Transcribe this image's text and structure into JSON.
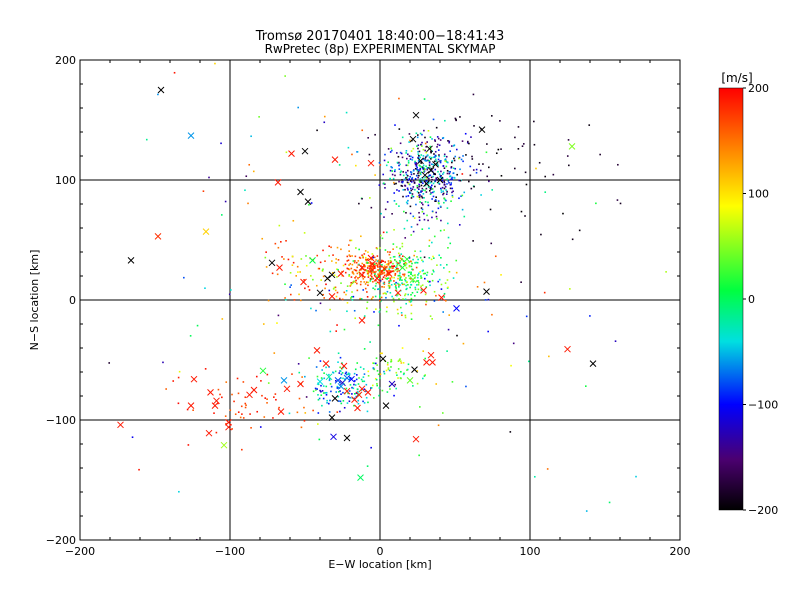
{
  "chart_data": {
    "type": "scatter",
    "title": "Tromsø 20170401 18:40:00−18:41:43",
    "subtitle": "RwPretec (8p) EXPERIMENTAL SKYMAP",
    "xlabel": "E−W location [km]",
    "ylabel": "N−S location [km]",
    "xlim": [
      -200,
      200
    ],
    "ylim": [
      -200,
      200
    ],
    "x_ticks": [
      -200,
      -100,
      0,
      100,
      200
    ],
    "y_ticks": [
      -200,
      -100,
      0,
      100,
      200
    ],
    "grid": true,
    "colorbar": {
      "label": "[m/s]",
      "range": [
        -200,
        200
      ],
      "ticks": [
        200,
        100,
        0,
        -100,
        -200
      ],
      "colormap": [
        "#000000",
        "#6a00a8",
        "#0000ff",
        "#00e0e0",
        "#00ff40",
        "#ffff00",
        "#ff8000",
        "#ff0000"
      ]
    },
    "markers": {
      "cross": "single-velocity estimate (x)",
      "dot": "meteor detection (.)"
    },
    "crosses": [
      {
        "x": -146,
        "y": 175,
        "v": -200
      },
      {
        "x": -126,
        "y": 137,
        "v": -60
      },
      {
        "x": -148,
        "y": 53,
        "v": 180
      },
      {
        "x": -116,
        "y": 57,
        "v": 110
      },
      {
        "x": -166,
        "y": 33,
        "v": -200
      },
      {
        "x": -173,
        "y": -104,
        "v": 190
      },
      {
        "x": -124,
        "y": -66,
        "v": 190
      },
      {
        "x": -126,
        "y": -88,
        "v": 190
      },
      {
        "x": -113,
        "y": -77,
        "v": 190
      },
      {
        "x": -109,
        "y": -84,
        "v": 190
      },
      {
        "x": -110,
        "y": -88,
        "v": 190
      },
      {
        "x": -114,
        "y": -111,
        "v": 190
      },
      {
        "x": -101,
        "y": -102,
        "v": 190
      },
      {
        "x": -101,
        "y": -106,
        "v": 190
      },
      {
        "x": -104,
        "y": -121,
        "v": 60
      },
      {
        "x": -87,
        "y": -79,
        "v": 190
      },
      {
        "x": -78,
        "y": -59,
        "v": 20
      },
      {
        "x": -64,
        "y": -67,
        "v": -60
      },
      {
        "x": -84,
        "y": -75,
        "v": 190
      },
      {
        "x": -53,
        "y": -70,
        "v": 190
      },
      {
        "x": -66,
        "y": -93,
        "v": 190
      },
      {
        "x": -62,
        "y": -74,
        "v": 190
      },
      {
        "x": -59,
        "y": 122,
        "v": 190
      },
      {
        "x": -68,
        "y": 98,
        "v": 190
      },
      {
        "x": -50,
        "y": 124,
        "v": -200
      },
      {
        "x": -53,
        "y": 90,
        "v": -200
      },
      {
        "x": -48,
        "y": 82,
        "v": -200
      },
      {
        "x": -30,
        "y": 117,
        "v": 190
      },
      {
        "x": -6,
        "y": 114,
        "v": 190
      },
      {
        "x": 22,
        "y": 134,
        "v": -200
      },
      {
        "x": 24,
        "y": 154,
        "v": -200
      },
      {
        "x": 68,
        "y": 142,
        "v": -200
      },
      {
        "x": 128,
        "y": 128,
        "v": 50
      },
      {
        "x": -72,
        "y": 31,
        "v": -200
      },
      {
        "x": -67,
        "y": 27,
        "v": 190
      },
      {
        "x": -45,
        "y": 33,
        "v": 10
      },
      {
        "x": -32,
        "y": 21,
        "v": -200
      },
      {
        "x": -35,
        "y": 18,
        "v": -200
      },
      {
        "x": -40,
        "y": 6,
        "v": -200
      },
      {
        "x": -51,
        "y": 15,
        "v": 190
      },
      {
        "x": -26,
        "y": 22,
        "v": 190
      },
      {
        "x": -12,
        "y": 27,
        "v": 190
      },
      {
        "x": -5,
        "y": 30,
        "v": 190
      },
      {
        "x": -6,
        "y": 35,
        "v": 190
      },
      {
        "x": -2,
        "y": 18,
        "v": 190
      },
      {
        "x": 6,
        "y": 22,
        "v": 190
      },
      {
        "x": -12,
        "y": 21,
        "v": 190
      },
      {
        "x": -32,
        "y": 3,
        "v": 190
      },
      {
        "x": -12,
        "y": -17,
        "v": 190
      },
      {
        "x": 12,
        "y": 6,
        "v": 190
      },
      {
        "x": 29,
        "y": 8,
        "v": 190
      },
      {
        "x": 41,
        "y": 2,
        "v": 190
      },
      {
        "x": 51,
        "y": -7,
        "v": -100
      },
      {
        "x": 71,
        "y": 7,
        "v": -200
      },
      {
        "x": -42,
        "y": -42,
        "v": 190
      },
      {
        "x": -36,
        "y": -53,
        "v": 190
      },
      {
        "x": -24,
        "y": -55,
        "v": 190
      },
      {
        "x": -34,
        "y": -64,
        "v": -20
      },
      {
        "x": -40,
        "y": -68,
        "v": -40
      },
      {
        "x": -28,
        "y": -67,
        "v": -80
      },
      {
        "x": -25,
        "y": -69,
        "v": -120
      },
      {
        "x": -22,
        "y": -65,
        "v": -70
      },
      {
        "x": -19,
        "y": -66,
        "v": -100
      },
      {
        "x": -26,
        "y": -72,
        "v": -60
      },
      {
        "x": -30,
        "y": -82,
        "v": -200
      },
      {
        "x": -22,
        "y": -76,
        "v": 190
      },
      {
        "x": -17,
        "y": -83,
        "v": 190
      },
      {
        "x": -14,
        "y": -79,
        "v": 190
      },
      {
        "x": -12,
        "y": -74,
        "v": 190
      },
      {
        "x": -8,
        "y": -77,
        "v": 190
      },
      {
        "x": -15,
        "y": -90,
        "v": 190
      },
      {
        "x": -32,
        "y": -98,
        "v": -200
      },
      {
        "x": -31,
        "y": -114,
        "v": -110
      },
      {
        "x": -22,
        "y": -115,
        "v": -200
      },
      {
        "x": 2,
        "y": -49,
        "v": -200
      },
      {
        "x": 8,
        "y": -70,
        "v": -120
      },
      {
        "x": 20,
        "y": -67,
        "v": 40
      },
      {
        "x": 23,
        "y": -58,
        "v": -200
      },
      {
        "x": 35,
        "y": -52,
        "v": 190
      },
      {
        "x": 31,
        "y": -52,
        "v": 190
      },
      {
        "x": 34,
        "y": -46,
        "v": 190
      },
      {
        "x": 4,
        "y": -88,
        "v": -200
      },
      {
        "x": 24,
        "y": -116,
        "v": 190
      },
      {
        "x": -13,
        "y": -148,
        "v": 0
      },
      {
        "x": 125,
        "y": -41,
        "v": 190
      },
      {
        "x": 142,
        "y": -53,
        "v": -200
      },
      {
        "x": -5,
        "y": 25,
        "v": 190
      },
      {
        "x": 3,
        "y": 26,
        "v": 190
      },
      {
        "x": 15,
        "y": 27,
        "v": 20
      },
      {
        "x": 18,
        "y": 34,
        "v": 20
      },
      {
        "x": 22,
        "y": 17,
        "v": 40
      },
      {
        "x": 30,
        "y": 104,
        "v": -200
      },
      {
        "x": 34,
        "y": 108,
        "v": -200
      },
      {
        "x": 27,
        "y": 116,
        "v": -200
      },
      {
        "x": 40,
        "y": 100,
        "v": -200
      },
      {
        "x": 31,
        "y": 97,
        "v": -200
      },
      {
        "x": 37,
        "y": 113,
        "v": -200
      },
      {
        "x": 33,
        "y": 126,
        "v": -200
      }
    ],
    "dot_clusters": [
      {
        "cx": 30,
        "cy": 105,
        "sx": 13,
        "sy": 16,
        "n": 380,
        "vmin": -200,
        "vmax": 0
      },
      {
        "cx": 25,
        "cy": 98,
        "sx": 18,
        "sy": 22,
        "n": 160,
        "vmin": -200,
        "vmax": 80
      },
      {
        "cx": 75,
        "cy": 120,
        "sx": 40,
        "sy": 25,
        "n": 70,
        "vmin": -200,
        "vmax": -170
      },
      {
        "cx": -3,
        "cy": 25,
        "sx": 11,
        "sy": 7,
        "n": 260,
        "vmin": 130,
        "vmax": 200
      },
      {
        "cx": 18,
        "cy": 20,
        "sx": 15,
        "sy": 14,
        "n": 220,
        "vmin": -40,
        "vmax": 70
      },
      {
        "cx": -30,
        "cy": 22,
        "sx": 25,
        "sy": 14,
        "n": 120,
        "vmin": 40,
        "vmax": 200
      },
      {
        "cx": 0,
        "cy": 5,
        "sx": 35,
        "sy": 18,
        "n": 80,
        "vmin": -160,
        "vmax": 200
      },
      {
        "cx": -22,
        "cy": -72,
        "sx": 12,
        "sy": 11,
        "n": 160,
        "vmin": -120,
        "vmax": 40
      },
      {
        "cx": 10,
        "cy": -60,
        "sx": 14,
        "sy": 10,
        "n": 60,
        "vmin": -40,
        "vmax": 120
      },
      {
        "cx": -90,
        "cy": -85,
        "sx": 25,
        "sy": 15,
        "n": 60,
        "vmin": 150,
        "vmax": 200
      },
      {
        "cx": -60,
        "cy": 120,
        "sx": 50,
        "sy": 40,
        "n": 40,
        "vmin": -200,
        "vmax": 200
      },
      {
        "cx": 0,
        "cy": -40,
        "sx": 110,
        "sy": 90,
        "n": 90,
        "vmin": -200,
        "vmax": 200
      }
    ]
  }
}
